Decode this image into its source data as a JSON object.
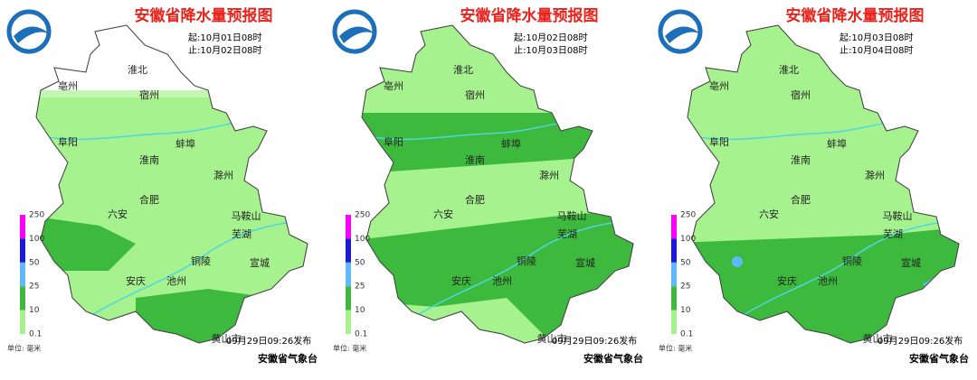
{
  "panels": [
    {
      "title": "安徽省降水量预报图",
      "start": "起:10月01日08时",
      "end": "止:10月02日08时",
      "cities": [
        "淮北",
        "亳州",
        "宿州",
        "阜阳",
        "蚌埠",
        "淮南",
        "滁州",
        "合肥",
        "六安",
        "马鞍山",
        "芜湖",
        "铜陵",
        "宣城",
        "安庆",
        "池州",
        "黄山市"
      ],
      "legend": [
        "250",
        "100",
        "50",
        "25",
        "10",
        "0.1"
      ],
      "unit": "单位: 毫米",
      "issued": "09月29日09:26发布",
      "agency": "安徽省气象台"
    },
    {
      "title": "安徽省降水量预报图",
      "start": "起:10月02日08时",
      "end": "止:10月03日08时",
      "cities": [
        "淮北",
        "亳州",
        "宿州",
        "阜阳",
        "蚌埠",
        "淮南",
        "滁州",
        "合肥",
        "六安",
        "马鞍山",
        "芜湖",
        "铜陵",
        "宣城",
        "安庆",
        "池州",
        "黄山市"
      ],
      "legend": [
        "250",
        "100",
        "50",
        "25",
        "10",
        "0.1"
      ],
      "unit": "单位: 毫米",
      "issued": "09月29日09:26发布",
      "agency": "安徽省气象台"
    },
    {
      "title": "安徽省降水量预报图",
      "start": "起:10月03日08时",
      "end": "止:10月04日08时",
      "cities": [
        "淮北",
        "亳州",
        "宿州",
        "阜阳",
        "蚌埠",
        "淮南",
        "滁州",
        "合肥",
        "六安",
        "马鞍山",
        "芜湖",
        "铜陵",
        "宣城",
        "安庆",
        "池州",
        "黄山市"
      ],
      "legend": [
        "250",
        "100",
        "50",
        "25",
        "10",
        "0.1"
      ],
      "unit": "单位: 毫米",
      "issued": "09月29日09:26发布",
      "agency": "安徽省气象台"
    }
  ]
}
